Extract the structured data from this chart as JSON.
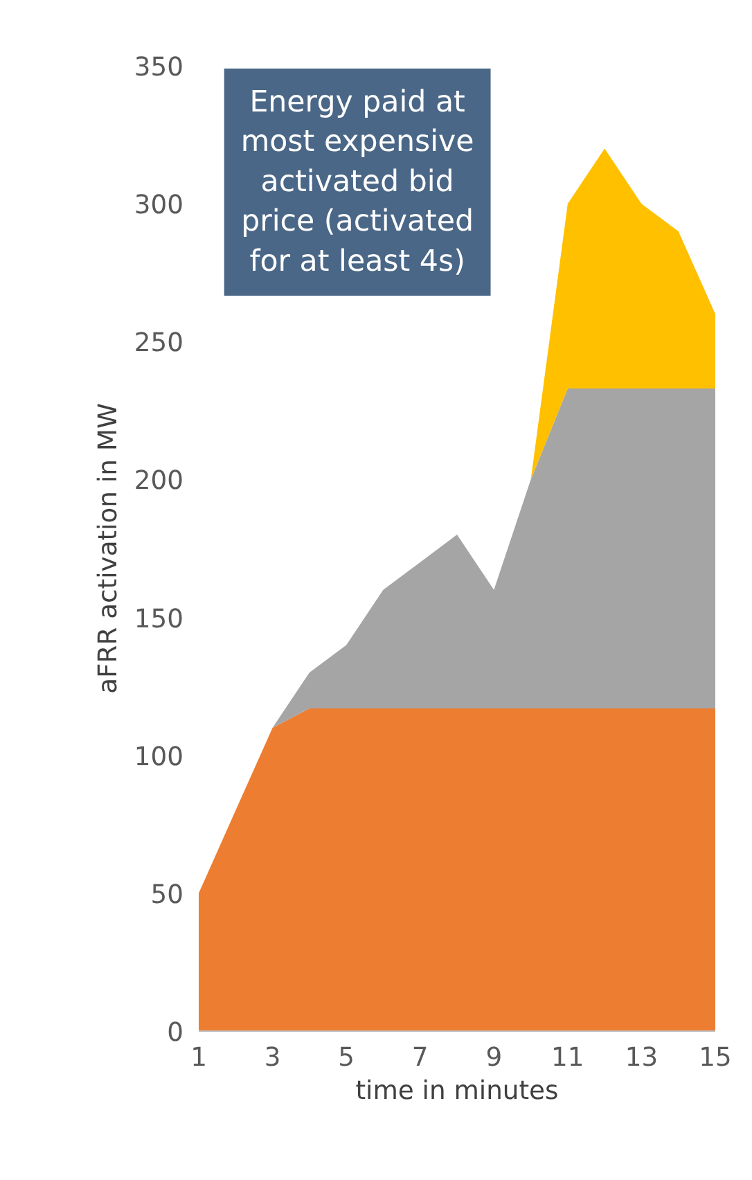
{
  "chart_data": {
    "type": "area",
    "stacked": true,
    "xlabel": "time in minutes",
    "ylabel": "aFRR activation in MW",
    "x": [
      1,
      2,
      3,
      4,
      5,
      6,
      7,
      8,
      9,
      10,
      11,
      12,
      13,
      14,
      15
    ],
    "series": [
      {
        "color": "#ed7d31",
        "values": [
          50,
          80,
          110,
          117,
          117,
          117,
          117,
          117,
          117,
          117,
          117,
          117,
          117,
          117,
          117
        ]
      },
      {
        "color": "#a5a5a5",
        "values": [
          0,
          0,
          0,
          13,
          23,
          43,
          53,
          63,
          43,
          83,
          116,
          116,
          116,
          116,
          116
        ]
      },
      {
        "color": "#ffc000",
        "values": [
          0,
          0,
          0,
          0,
          0,
          0,
          0,
          0,
          0,
          0,
          67,
          87,
          67,
          57,
          27
        ]
      }
    ],
    "xlim": [
      1,
      15
    ],
    "xticks": [
      1,
      3,
      5,
      7,
      9,
      11,
      13,
      15
    ],
    "ylim": [
      0,
      350
    ],
    "yticks": [
      0,
      50,
      100,
      150,
      200,
      250,
      300,
      350
    ],
    "annotations": [
      "Energy paid at most expensive activated bid price (activated for at least 4s)"
    ]
  }
}
